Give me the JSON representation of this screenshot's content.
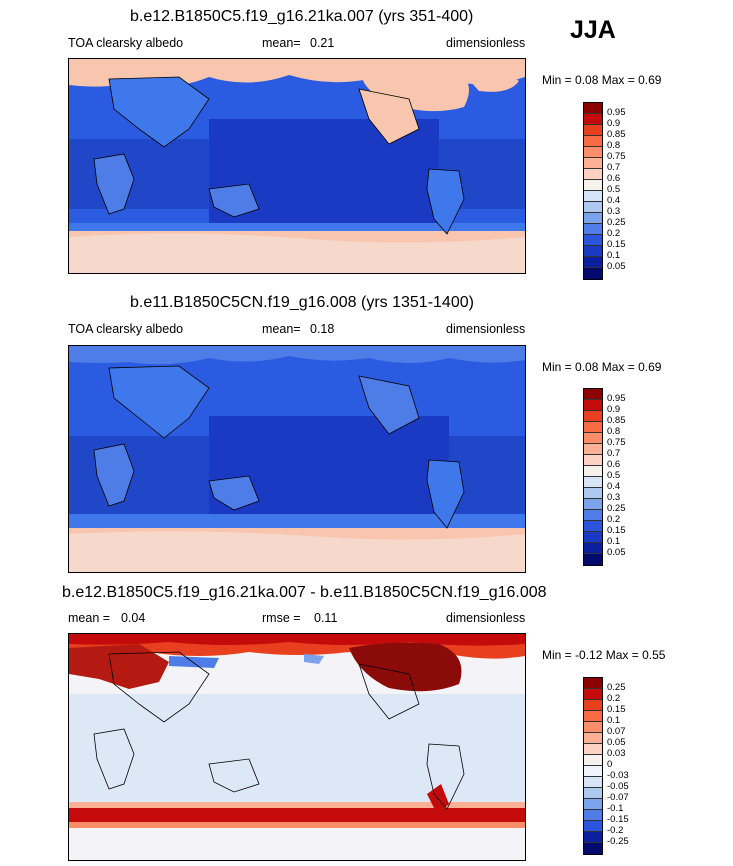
{
  "season": "JJA",
  "colors": {
    "ocean_deep": "#1f47c8",
    "ocean_mid": "#2a5be0",
    "ocean_light": "#3f78ea",
    "ice_pink": "#f8c5ae",
    "diff_neutral": "#f4f4f8",
    "diff_light_blue": "#cfe0f5",
    "diff_red": "#b41a12",
    "diff_dark_red": "#8b0a0a"
  },
  "panels": [
    {
      "title": "b.e12.B1850C5.f19_g16.21ka.007 (yrs 351-400)",
      "left_label": "TOA clearsky albedo",
      "stat_label": "mean=",
      "stat_value": "0.21",
      "units": "dimensionless",
      "min_label": "Min =",
      "min_value": "0.08",
      "max_label": "Max =",
      "max_value": "0.69",
      "colorbar": {
        "labels": [
          "0.95",
          "0.9",
          "0.85",
          "0.8",
          "0.75",
          "0.7",
          "0.6",
          "0.5",
          "0.4",
          "0.3",
          "0.25",
          "0.2",
          "0.15",
          "0.1",
          "0.05"
        ],
        "colors": [
          "#8b0000",
          "#c40a0a",
          "#e8401e",
          "#f86a42",
          "#fb8e68",
          "#fcb096",
          "#fdd2c2",
          "#f7f1ee",
          "#d6e4f7",
          "#adc9f0",
          "#7ba3ec",
          "#4f7de8",
          "#2b55dc",
          "#1a3ac4",
          "#0c1f9e",
          "#030a6e"
        ]
      }
    },
    {
      "title": "b.e11.B1850C5CN.f19_g16.008 (yrs 1351-1400)",
      "left_label": "TOA clearsky albedo",
      "stat_label": "mean=",
      "stat_value": "0.18",
      "units": "dimensionless",
      "min_label": "Min =",
      "min_value": "0.08",
      "max_label": "Max =",
      "max_value": "0.69",
      "colorbar": {
        "labels": [
          "0.95",
          "0.9",
          "0.85",
          "0.8",
          "0.75",
          "0.7",
          "0.6",
          "0.5",
          "0.4",
          "0.3",
          "0.25",
          "0.2",
          "0.15",
          "0.1",
          "0.05"
        ],
        "colors": [
          "#8b0000",
          "#c40a0a",
          "#e8401e",
          "#f86a42",
          "#fb8e68",
          "#fcb096",
          "#fdd2c2",
          "#f7f1ee",
          "#d6e4f7",
          "#adc9f0",
          "#7ba3ec",
          "#4f7de8",
          "#2b55dc",
          "#1a3ac4",
          "#0c1f9e",
          "#030a6e"
        ]
      }
    },
    {
      "title": "b.e12.B1850C5.f19_g16.21ka.007 - b.e11.B1850C5CN.f19_g16.008",
      "left_label": "mean =",
      "left_value": "0.04",
      "stat_label": "rmse =",
      "stat_value": "0.11",
      "units": "dimensionless",
      "min_label": "Min =",
      "min_value": "-0.12",
      "max_label": "Max =",
      "max_value": "0.55",
      "colorbar": {
        "labels": [
          "0.25",
          "0.2",
          "0.15",
          "0.1",
          "0.07",
          "0.05",
          "0.03",
          "0",
          "-0.03",
          "-0.05",
          "-0.07",
          "-0.1",
          "-0.15",
          "-0.2",
          "-0.25"
        ],
        "colors": [
          "#8b0000",
          "#c40a0a",
          "#e8401e",
          "#f86a42",
          "#fb8e68",
          "#fcb096",
          "#fdd2c2",
          "#f7f1ee",
          "#f0f4fa",
          "#d6e4f7",
          "#adc9f0",
          "#7ba3ec",
          "#4f7de8",
          "#2b55dc",
          "#0c1f9e",
          "#030a6e"
        ]
      }
    }
  ]
}
